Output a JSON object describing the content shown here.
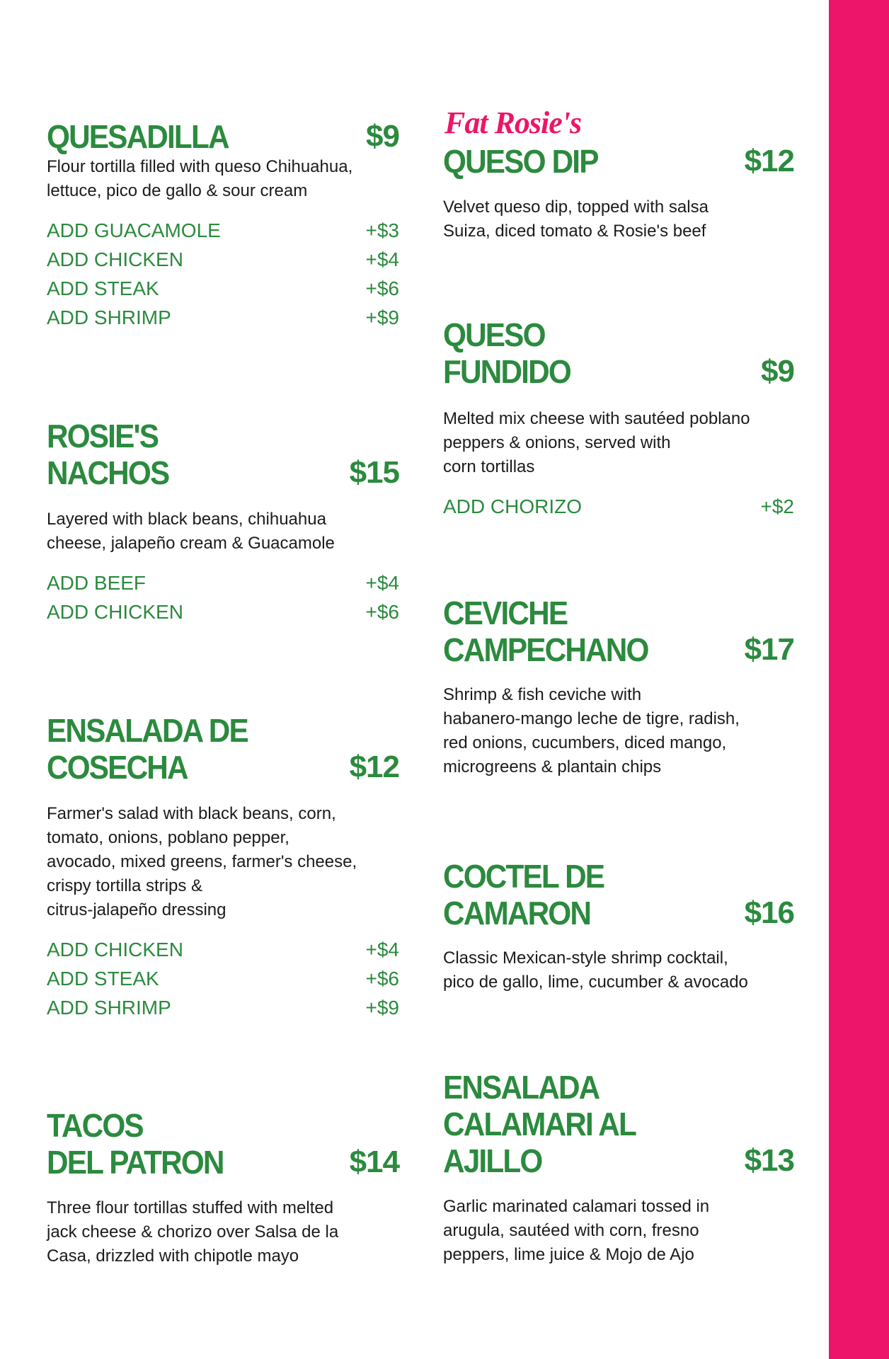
{
  "brand": "Fat Rosie's",
  "colors": {
    "accent": "#ed1569",
    "heading": "#2b8a3e",
    "text": "#1b1b1b"
  },
  "left": [
    {
      "name": [
        "QUESADILLA"
      ],
      "price": "$9",
      "desc": [
        "Flour tortilla filled with queso Chihuahua,",
        "lettuce, pico de gallo & sour cream"
      ],
      "addons": [
        {
          "label": "ADD GUACAMOLE",
          "price": "+$3"
        },
        {
          "label": "ADD CHICKEN",
          "price": "+$4"
        },
        {
          "label": "ADD STEAK",
          "price": "+$6"
        },
        {
          "label": "ADD SHRIMP",
          "price": "+$9"
        }
      ]
    },
    {
      "name": [
        "ROSIE'S",
        "NACHOS"
      ],
      "price": "$15",
      "desc": [
        "Layered with black beans, chihuahua",
        "cheese, jalapeño cream & Guacamole"
      ],
      "addons": [
        {
          "label": "ADD BEEF",
          "price": "+$4"
        },
        {
          "label": "ADD CHICKEN",
          "price": "+$6"
        }
      ]
    },
    {
      "name": [
        "ENSALADA DE",
        "COSECHA"
      ],
      "price": "$12",
      "desc": [
        "Farmer's salad with black beans, corn,",
        "tomato, onions, poblano pepper,",
        "avocado, mixed greens, farmer's cheese,",
        "crispy tortilla strips &",
        "citrus-jalapeño dressing"
      ],
      "addons": [
        {
          "label": "ADD CHICKEN",
          "price": "+$4"
        },
        {
          "label": "ADD STEAK",
          "price": "+$6"
        },
        {
          "label": "ADD SHRIMP",
          "price": "+$9"
        }
      ]
    },
    {
      "name": [
        "TACOS",
        "DEL PATRON"
      ],
      "price": "$14",
      "desc": [
        "Three flour tortillas stuffed with melted",
        "jack cheese & chorizo over Salsa de la",
        "Casa, drizzled with chipotle mayo"
      ],
      "addons": []
    }
  ],
  "right": [
    {
      "name": [
        "QUESO DIP"
      ],
      "price": "$12",
      "desc": [
        "Velvet queso dip, topped with salsa",
        "Suiza, diced tomato & Rosie's beef"
      ],
      "addons": []
    },
    {
      "name": [
        "QUESO",
        "FUNDIDO"
      ],
      "price": "$9",
      "desc": [
        "Melted mix cheese with sautéed poblano",
        "peppers & onions, served with",
        "corn tortillas"
      ],
      "addons": [
        {
          "label": "ADD CHORIZO",
          "price": "+$2"
        }
      ]
    },
    {
      "name": [
        "CEVICHE",
        "CAMPECHANO"
      ],
      "price": "$17",
      "desc": [
        "Shrimp & fish ceviche with",
        "habanero-mango leche de tigre, radish,",
        "red onions, cucumbers, diced mango,",
        "microgreens & plantain chips"
      ],
      "addons": []
    },
    {
      "name": [
        "COCTEL DE",
        "CAMARON"
      ],
      "price": "$16",
      "desc": [
        "Classic Mexican-style shrimp cocktail,",
        "pico de gallo, lime, cucumber & avocado"
      ],
      "addons": []
    },
    {
      "name": [
        "ENSALADA",
        "CALAMARI AL",
        "AJILLO"
      ],
      "price": "$13",
      "desc": [
        "Garlic marinated calamari tossed in",
        "arugula, sautéed with corn, fresno",
        "peppers, lime juice & Mojo de Ajo"
      ],
      "addons": []
    }
  ]
}
